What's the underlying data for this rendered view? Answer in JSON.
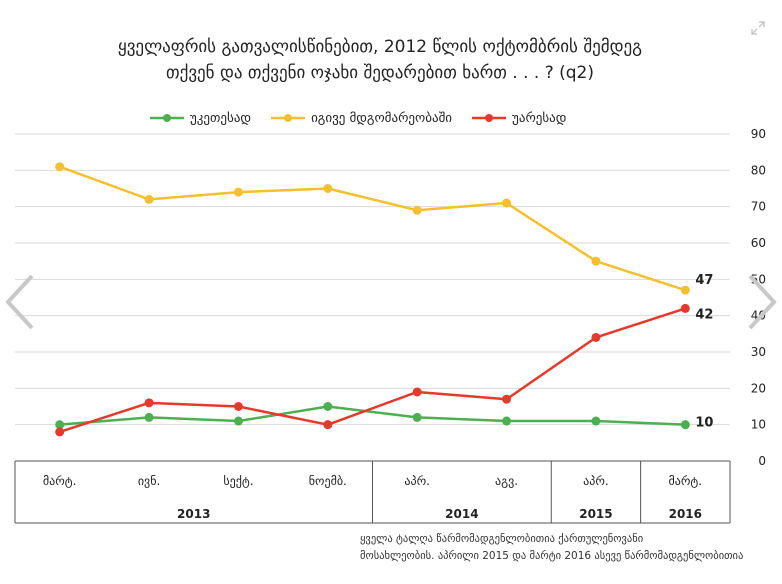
{
  "title": {
    "line1": "ყველაფრის გათვალისწინებით, 2012 წლის ოქტომბრის შემდეგ",
    "line2": "თქვენ და თქვენი ოჯახი შედარებით ხართ . . . ? (q2)"
  },
  "colors": {
    "better": "#4caf50",
    "same": "#f5c02f",
    "worse": "#e5392c",
    "grid": "#d9d9d9",
    "axis": "#555555"
  },
  "source": {
    "line1": "ყველა ტალღა წარმომადგენლობითია ქართულენოვანი",
    "line2": "მოსახლეობის. აპრილი 2015 და მარტი 2016 ასევე წარმომადგენლობითია"
  },
  "chart_data": {
    "type": "line",
    "categories": [
      "მარტ.",
      "ივნ.",
      "სექტ.",
      "ნოემბ.",
      "აპრ.",
      "აგვ.",
      "აპრ.",
      "მარტ."
    ],
    "groups": [
      {
        "label": "2013",
        "span": 4
      },
      {
        "label": "2014",
        "span": 2
      },
      {
        "label": "2015",
        "span": 1
      },
      {
        "label": "2016",
        "span": 1
      }
    ],
    "series": [
      {
        "name": "უკეთესად",
        "color_key": "better",
        "values": [
          10,
          12,
          11,
          15,
          12,
          11,
          11,
          10
        ],
        "end_label": "10"
      },
      {
        "name": "იგივე მდგომარეობაში",
        "color_key": "same",
        "values": [
          81,
          72,
          74,
          75,
          69,
          71,
          55,
          47
        ],
        "end_label": "47"
      },
      {
        "name": "უარესად",
        "color_key": "worse",
        "values": [
          8,
          16,
          15,
          10,
          19,
          17,
          34,
          42
        ],
        "end_label": "42"
      }
    ],
    "ylim": [
      0,
      90
    ],
    "yticks": [
      "0",
      "10",
      "20",
      "30",
      "40",
      "50",
      "60",
      "70",
      "80",
      "90"
    ],
    "y_axis_side": "right",
    "grid": true,
    "legend": "top"
  }
}
